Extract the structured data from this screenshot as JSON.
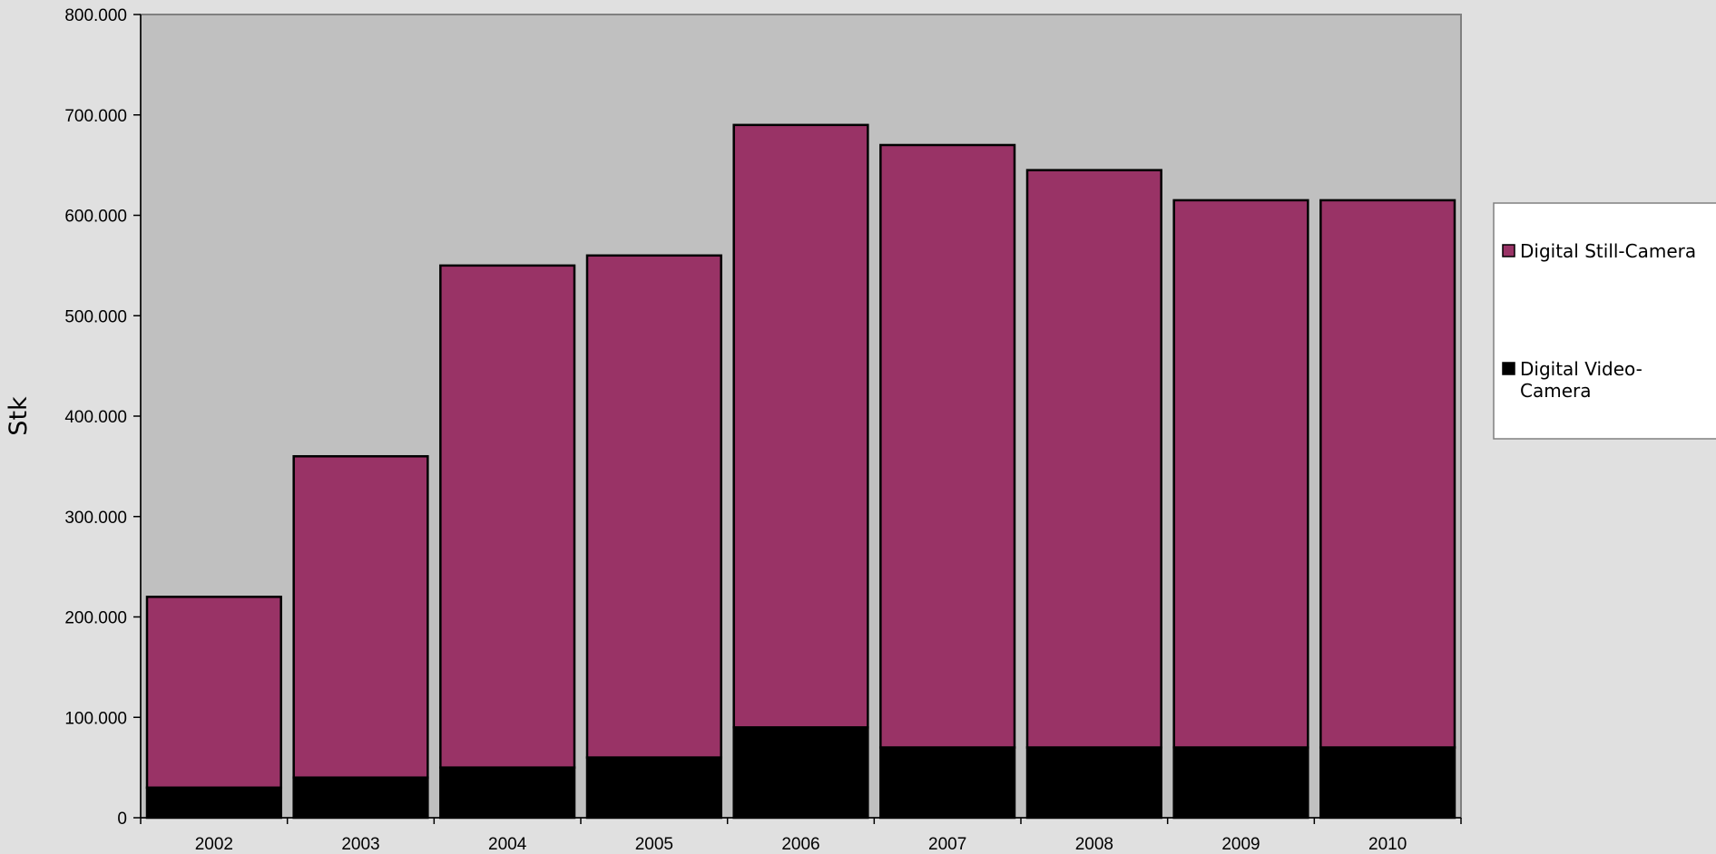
{
  "chart_data": {
    "type": "bar",
    "stacked": true,
    "categories": [
      "2002",
      "2003",
      "2004",
      "2005",
      "2006",
      "2007",
      "2008",
      "2009",
      "2010"
    ],
    "series": [
      {
        "name": "Digital Video-Camera",
        "color": "#000000",
        "values": [
          30000,
          40000,
          50000,
          60000,
          90000,
          70000,
          70000,
          70000,
          70000
        ]
      },
      {
        "name": "Digital Still-Camera",
        "color": "#993366",
        "values": [
          190000,
          320000,
          500000,
          500000,
          600000,
          600000,
          575000,
          545000,
          545000
        ]
      }
    ],
    "ylabel": "Stk",
    "ylim": [
      0,
      800000
    ],
    "ytick_labels": [
      "0",
      "100.000",
      "200.000",
      "300.000",
      "400.000",
      "500.000",
      "600.000",
      "700.000",
      "800.000"
    ],
    "grid": false,
    "plot_background": "#c0c0c0",
    "legend": {
      "position": "right",
      "entries": [
        {
          "label_lines": [
            "Digital Still-Camera"
          ],
          "color": "#993366"
        },
        {
          "label_lines": [
            "Digital Video-",
            "Camera"
          ],
          "color": "#000000"
        }
      ]
    }
  }
}
